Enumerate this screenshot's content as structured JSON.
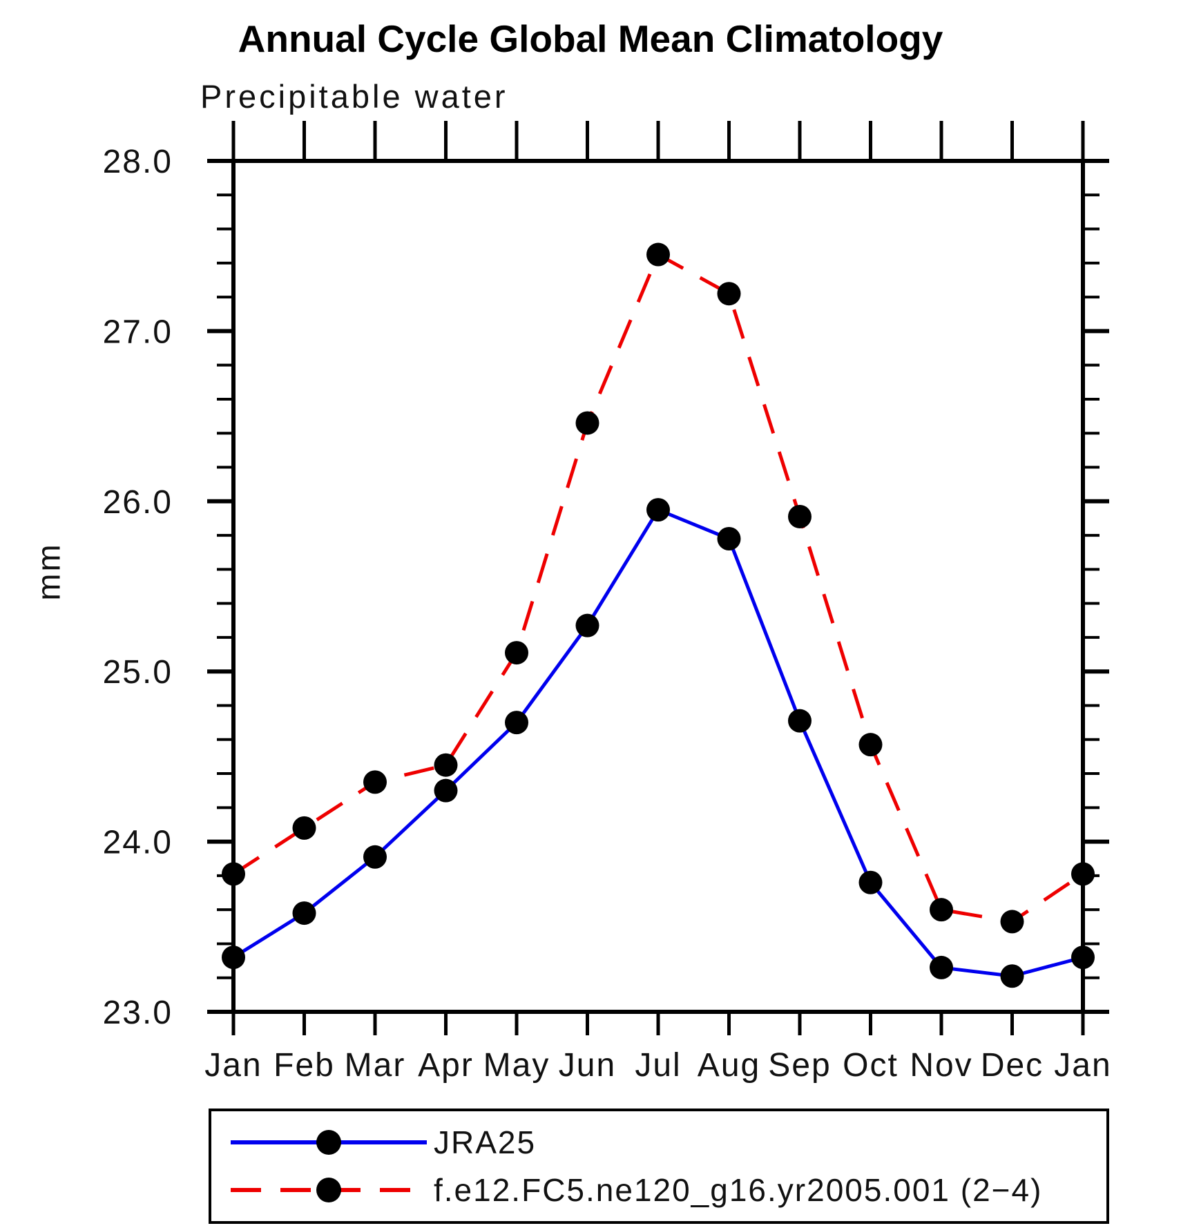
{
  "chart_data": {
    "type": "line",
    "title": "Annual Cycle Global Mean Climatology",
    "subtitle": "Precipitable water",
    "ylabel": "mm",
    "categories": [
      "Jan",
      "Feb",
      "Mar",
      "Apr",
      "May",
      "Jun",
      "Jul",
      "Aug",
      "Sep",
      "Oct",
      "Nov",
      "Dec",
      "Jan"
    ],
    "ylim": [
      23.0,
      28.0
    ],
    "ytick_major": 1.0,
    "ytick_minor": 0.2,
    "ytick_labels": [
      "23.0",
      "24.0",
      "25.0",
      "26.0",
      "27.0",
      "28.0"
    ],
    "grid": false,
    "legend_position": "bottom",
    "series": [
      {
        "name": "JRA25",
        "color": "#0000ee",
        "line_style": "solid",
        "marker": "filled-circle",
        "marker_color": "#000000",
        "values": [
          23.32,
          23.58,
          23.91,
          24.3,
          24.7,
          25.27,
          25.95,
          25.78,
          24.71,
          23.76,
          23.26,
          23.21,
          23.32
        ]
      },
      {
        "name": "f.e12.FC5.ne120_g16.yr2005.001 (2−4)",
        "color": "#ee0000",
        "line_style": "dashed",
        "marker": "filled-circle",
        "marker_color": "#000000",
        "values": [
          23.81,
          24.08,
          24.35,
          24.45,
          25.11,
          26.46,
          27.45,
          27.22,
          25.91,
          24.57,
          23.6,
          23.53,
          23.81
        ]
      }
    ]
  }
}
